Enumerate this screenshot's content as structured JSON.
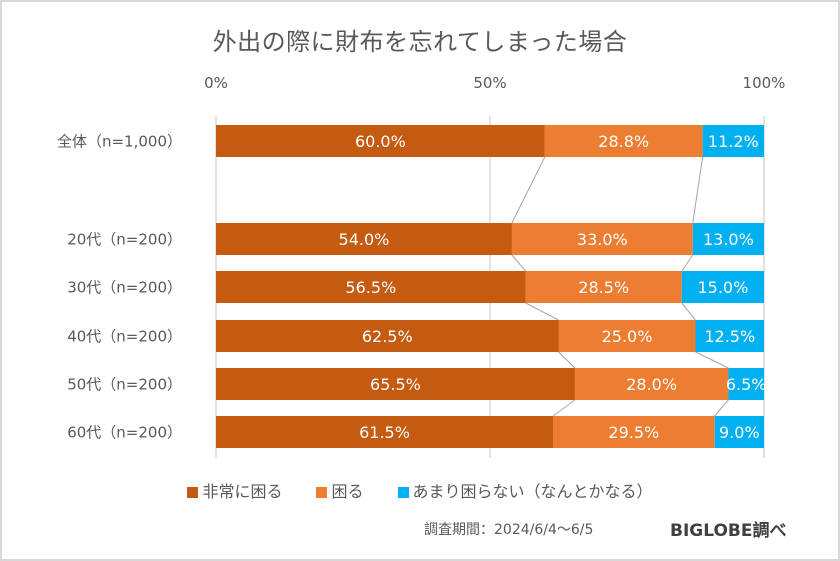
{
  "chart_data": {
    "type": "bar",
    "orientation": "horizontal",
    "stacked": "100%",
    "title": "外出の際に財布を忘れてしまった場合",
    "xlabel": "",
    "ylabel": "",
    "xlim": [
      0,
      100
    ],
    "x_ticks": [
      "0%",
      "50%",
      "100%"
    ],
    "grid": true,
    "legend_position": "bottom",
    "categories": [
      "全体（n=1,000）",
      "20代（n=200）",
      "30代（n=200）",
      "40代（n=200）",
      "50代（n=200）",
      "60代（n=200）"
    ],
    "series": [
      {
        "name": "非常に困る",
        "color": "#C55A11",
        "values": [
          60.0,
          54.0,
          56.5,
          62.5,
          65.5,
          61.5
        ],
        "labels": [
          "60.0%",
          "54.0%",
          "56.5%",
          "62.5%",
          "65.5%",
          "61.5%"
        ]
      },
      {
        "name": "困る",
        "color": "#ED7D31",
        "values": [
          28.8,
          33.0,
          28.5,
          25.0,
          28.0,
          29.5
        ],
        "labels": [
          "28.8%",
          "33.0%",
          "28.5%",
          "25.0%",
          "28.0%",
          "29.5%"
        ]
      },
      {
        "name": "あまり困らない（なんとかなる）",
        "color": "#00B0F0",
        "values": [
          11.2,
          13.0,
          15.0,
          12.5,
          6.5,
          9.0
        ],
        "labels": [
          "11.2%",
          "13.0%",
          "15.0%",
          "12.5%",
          "6.5%",
          "9.0%"
        ]
      }
    ],
    "series_lines": true
  },
  "footer": {
    "period": "調査期間：2024/6/4～6/5",
    "source": "BIGLOBE調べ"
  }
}
